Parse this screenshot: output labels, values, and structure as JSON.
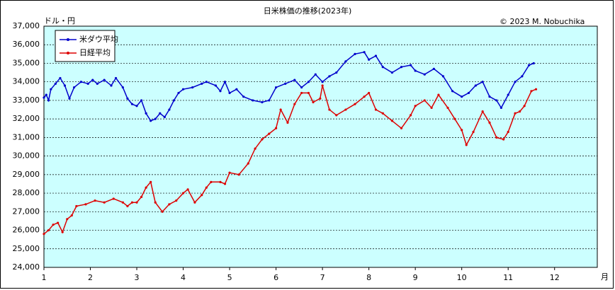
{
  "chart_data": {
    "type": "line",
    "title": "日米株価の推移(2023年)",
    "copyright": "© 2023 M. Nobuchika",
    "y_label": "ドル・円",
    "x_label": "月",
    "legend": "upper left",
    "grid": true,
    "background": "#ccffff",
    "xlim": [
      1,
      12.92
    ],
    "xticks": [
      1,
      2,
      3,
      4,
      5,
      6,
      7,
      8,
      9,
      10,
      11,
      12
    ],
    "ylim": [
      24000,
      37000
    ],
    "yticks": [
      {
        "value": 24000,
        "label": "24,000"
      },
      {
        "value": 25000,
        "label": "25,000"
      },
      {
        "value": 26000,
        "label": "26,000"
      },
      {
        "value": 27000,
        "label": "27,000"
      },
      {
        "value": 28000,
        "label": "28,000"
      },
      {
        "value": 29000,
        "label": "29,000"
      },
      {
        "value": 30000,
        "label": "30,000"
      },
      {
        "value": 31000,
        "label": "31,000"
      },
      {
        "value": 32000,
        "label": "32,000"
      },
      {
        "value": 33000,
        "label": "33,000"
      },
      {
        "value": 34000,
        "label": "34,000"
      },
      {
        "value": 35000,
        "label": "35,000"
      },
      {
        "value": 36000,
        "label": "36,000"
      },
      {
        "value": 37000,
        "label": "37,000"
      }
    ],
    "series": [
      {
        "name": "米ダウ平均",
        "color": "#0000cc",
        "x": [
          1.0,
          1.05,
          1.1,
          1.15,
          1.25,
          1.35,
          1.45,
          1.55,
          1.65,
          1.8,
          1.95,
          2.05,
          2.15,
          2.3,
          2.45,
          2.55,
          2.7,
          2.8,
          2.9,
          3.0,
          3.1,
          3.2,
          3.3,
          3.4,
          3.5,
          3.6,
          3.7,
          3.8,
          3.9,
          4.0,
          4.2,
          4.4,
          4.5,
          4.7,
          4.8,
          4.9,
          5.0,
          5.15,
          5.3,
          5.5,
          5.7,
          5.85,
          6.0,
          6.2,
          6.4,
          6.55,
          6.7,
          6.85,
          7.0,
          7.15,
          7.3,
          7.5,
          7.7,
          7.9,
          8.0,
          8.15,
          8.3,
          8.5,
          8.7,
          8.9,
          9.0,
          9.2,
          9.4,
          9.6,
          9.8,
          10.0,
          10.15,
          10.3,
          10.45,
          10.6,
          10.75,
          10.85,
          11.0,
          11.15,
          11.3,
          11.45,
          11.55
        ],
        "values": [
          33150,
          33300,
          33000,
          33600,
          33900,
          34200,
          33800,
          33100,
          33700,
          34000,
          33900,
          34100,
          33900,
          34100,
          33800,
          34200,
          33700,
          33100,
          32800,
          32700,
          33000,
          32300,
          31900,
          32000,
          32300,
          32100,
          32500,
          33000,
          33400,
          33600,
          33700,
          33900,
          34000,
          33800,
          33500,
          34000,
          33400,
          33600,
          33200,
          33000,
          32900,
          33000,
          33700,
          33900,
          34100,
          33700,
          34000,
          34400,
          34000,
          34300,
          34500,
          35100,
          35500,
          35600,
          35200,
          35400,
          34800,
          34500,
          34800,
          34900,
          34600,
          34400,
          34700,
          34300,
          33500,
          33200,
          33400,
          33800,
          34000,
          33200,
          33000,
          32600,
          33300,
          34000,
          34300,
          34900,
          35000
        ]
      },
      {
        "name": "日経平均",
        "color": "#dd0000",
        "x": [
          1.0,
          1.1,
          1.2,
          1.3,
          1.4,
          1.5,
          1.6,
          1.7,
          1.9,
          2.1,
          2.3,
          2.5,
          2.7,
          2.8,
          2.9,
          3.0,
          3.1,
          3.2,
          3.3,
          3.4,
          3.55,
          3.7,
          3.85,
          4.0,
          4.1,
          4.25,
          4.4,
          4.5,
          4.6,
          4.8,
          4.9,
          5.0,
          5.2,
          5.4,
          5.55,
          5.7,
          5.85,
          6.0,
          6.1,
          6.25,
          6.4,
          6.55,
          6.7,
          6.8,
          6.95,
          7.0,
          7.15,
          7.3,
          7.5,
          7.7,
          7.9,
          8.0,
          8.15,
          8.3,
          8.5,
          8.7,
          8.9,
          9.0,
          9.2,
          9.35,
          9.5,
          9.7,
          9.85,
          10.0,
          10.1,
          10.25,
          10.45,
          10.6,
          10.75,
          10.9,
          11.0,
          11.15,
          11.25,
          11.35,
          11.5,
          11.6
        ],
        "values": [
          25800,
          26000,
          26300,
          26400,
          25900,
          26600,
          26800,
          27300,
          27400,
          27600,
          27500,
          27700,
          27500,
          27300,
          27500,
          27500,
          27800,
          28300,
          28600,
          27500,
          27000,
          27400,
          27600,
          28000,
          28200,
          27500,
          27900,
          28300,
          28600,
          28600,
          28500,
          29100,
          29000,
          29600,
          30400,
          30900,
          31200,
          31500,
          32500,
          31800,
          32800,
          33400,
          33400,
          32900,
          33100,
          33800,
          32500,
          32200,
          32500,
          32800,
          33200,
          33400,
          32500,
          32300,
          31900,
          31500,
          32200,
          32700,
          33000,
          32600,
          33300,
          32600,
          32000,
          31400,
          30600,
          31300,
          32400,
          31800,
          31000,
          30900,
          31300,
          32300,
          32400,
          32700,
          33500,
          33600
        ]
      }
    ]
  }
}
